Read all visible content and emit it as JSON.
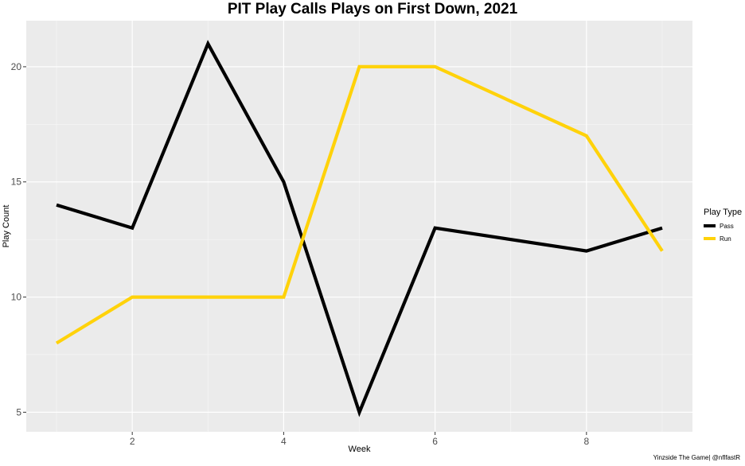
{
  "chart_data": {
    "type": "line",
    "title": "PIT Play Calls Plays on First Down, 2021",
    "xlabel": "Week",
    "ylabel": "Play Count",
    "x": [
      1,
      2,
      3,
      4,
      5,
      6,
      8,
      9
    ],
    "xlim": [
      0.6,
      9.4
    ],
    "ylim": [
      4.15,
      22.0
    ],
    "xticks": [
      2,
      4,
      6,
      8
    ],
    "yticks": [
      5,
      10,
      15,
      20
    ],
    "grid": true,
    "legend": {
      "title": "Play Type",
      "placement": "right",
      "entries": [
        "Pass",
        "Run"
      ]
    },
    "series": [
      {
        "name": "Pass",
        "color": "#000000",
        "values": [
          14,
          13,
          21,
          15,
          5,
          13,
          12,
          13
        ]
      },
      {
        "name": "Run",
        "color": "#FFD20A",
        "values": [
          8,
          10,
          10,
          10,
          20,
          20,
          17,
          12
        ]
      }
    ],
    "caption": "Yinzside The Game| @nflfastR"
  }
}
